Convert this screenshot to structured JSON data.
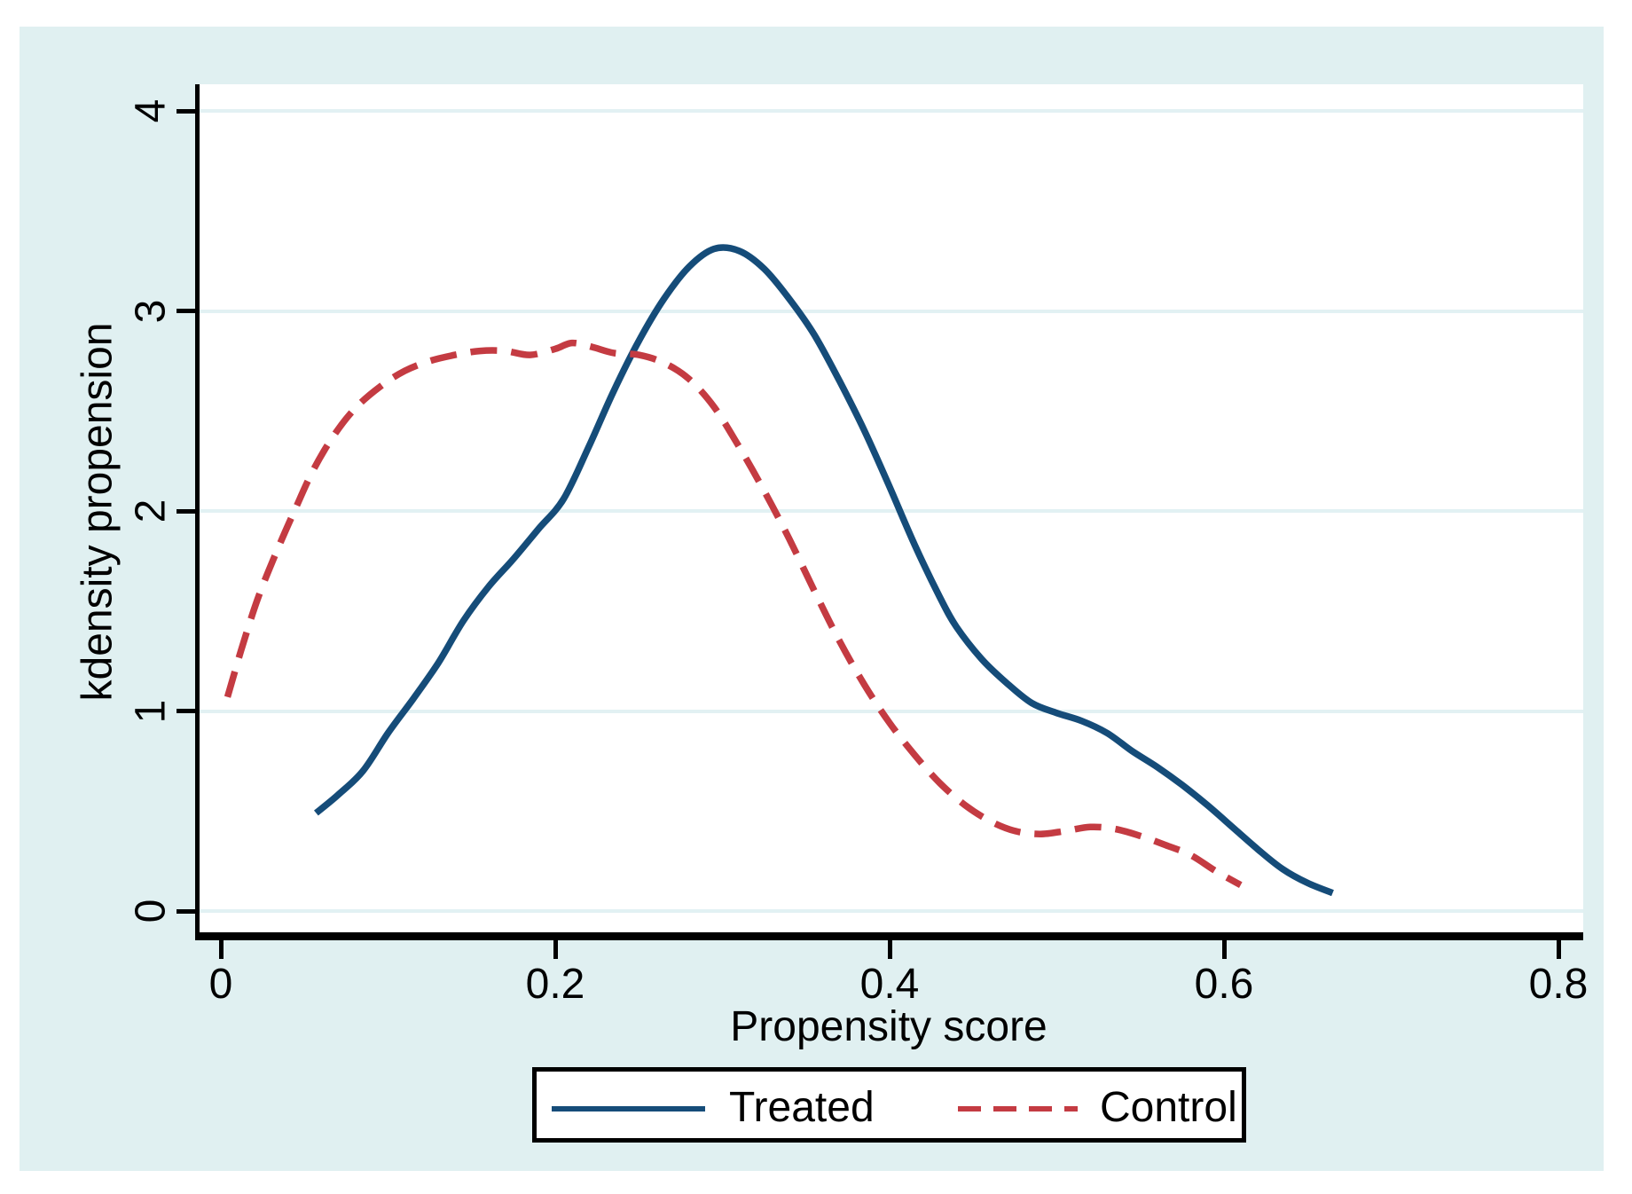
{
  "chart_data": {
    "type": "line",
    "title": "",
    "xlabel": "Propensity score",
    "ylabel": "kdensity propension",
    "xlim": [
      -0.015,
      0.815
    ],
    "ylim": [
      -0.11,
      4.13
    ],
    "grid": "horizontal",
    "legend_position": "bottom-center",
    "x_axis": {
      "tick_values": [
        0,
        0.2,
        0.4,
        0.6,
        0.8
      ],
      "tick_labels": [
        "0",
        "0.2",
        "0.4",
        "0.6",
        "0.8"
      ]
    },
    "y_axis": {
      "tick_values": [
        0,
        1,
        2,
        3,
        4
      ],
      "tick_labels": [
        "0",
        "1",
        "2",
        "3",
        "4"
      ]
    },
    "series": [
      {
        "name": "Treated",
        "style": "solid",
        "color": "#154c79",
        "points": [
          [
            0.057,
            0.49
          ],
          [
            0.07,
            0.58
          ],
          [
            0.085,
            0.7
          ],
          [
            0.1,
            0.89
          ],
          [
            0.115,
            1.06
          ],
          [
            0.13,
            1.24
          ],
          [
            0.145,
            1.45
          ],
          [
            0.16,
            1.62
          ],
          [
            0.175,
            1.76
          ],
          [
            0.19,
            1.91
          ],
          [
            0.205,
            2.06
          ],
          [
            0.22,
            2.32
          ],
          [
            0.235,
            2.6
          ],
          [
            0.25,
            2.85
          ],
          [
            0.265,
            3.06
          ],
          [
            0.28,
            3.22
          ],
          [
            0.295,
            3.31
          ],
          [
            0.31,
            3.3
          ],
          [
            0.325,
            3.21
          ],
          [
            0.34,
            3.06
          ],
          [
            0.355,
            2.88
          ],
          [
            0.37,
            2.65
          ],
          [
            0.385,
            2.4
          ],
          [
            0.4,
            2.12
          ],
          [
            0.415,
            1.83
          ],
          [
            0.43,
            1.57
          ],
          [
            0.44,
            1.42
          ],
          [
            0.455,
            1.26
          ],
          [
            0.47,
            1.14
          ],
          [
            0.485,
            1.04
          ],
          [
            0.5,
            0.99
          ],
          [
            0.515,
            0.95
          ],
          [
            0.53,
            0.89
          ],
          [
            0.545,
            0.8
          ],
          [
            0.56,
            0.72
          ],
          [
            0.575,
            0.63
          ],
          [
            0.59,
            0.53
          ],
          [
            0.605,
            0.42
          ],
          [
            0.62,
            0.31
          ],
          [
            0.635,
            0.21
          ],
          [
            0.65,
            0.14
          ],
          [
            0.665,
            0.09
          ]
        ]
      },
      {
        "name": "Control",
        "style": "dashed",
        "color": "#c43b42",
        "points": [
          [
            0.004,
            1.07
          ],
          [
            0.012,
            1.3
          ],
          [
            0.022,
            1.56
          ],
          [
            0.033,
            1.79
          ],
          [
            0.044,
            2.0
          ],
          [
            0.055,
            2.2
          ],
          [
            0.067,
            2.37
          ],
          [
            0.08,
            2.51
          ],
          [
            0.095,
            2.62
          ],
          [
            0.11,
            2.7
          ],
          [
            0.125,
            2.75
          ],
          [
            0.14,
            2.78
          ],
          [
            0.155,
            2.8
          ],
          [
            0.17,
            2.8
          ],
          [
            0.185,
            2.78
          ],
          [
            0.2,
            2.81
          ],
          [
            0.21,
            2.84
          ],
          [
            0.222,
            2.82
          ],
          [
            0.235,
            2.79
          ],
          [
            0.25,
            2.78
          ],
          [
            0.265,
            2.74
          ],
          [
            0.28,
            2.66
          ],
          [
            0.295,
            2.52
          ],
          [
            0.31,
            2.32
          ],
          [
            0.325,
            2.1
          ],
          [
            0.34,
            1.86
          ],
          [
            0.355,
            1.6
          ],
          [
            0.37,
            1.35
          ],
          [
            0.385,
            1.13
          ],
          [
            0.4,
            0.94
          ],
          [
            0.415,
            0.78
          ],
          [
            0.43,
            0.64
          ],
          [
            0.445,
            0.53
          ],
          [
            0.46,
            0.45
          ],
          [
            0.475,
            0.4
          ],
          [
            0.49,
            0.385
          ],
          [
            0.505,
            0.4
          ],
          [
            0.52,
            0.42
          ],
          [
            0.535,
            0.41
          ],
          [
            0.55,
            0.375
          ],
          [
            0.565,
            0.33
          ],
          [
            0.58,
            0.28
          ],
          [
            0.595,
            0.2
          ],
          [
            0.61,
            0.13
          ]
        ]
      }
    ]
  },
  "colors": {
    "page_bg": "#ffffff",
    "card_bg": "#e0f0f1",
    "plot_bg": "#ffffff",
    "gridline": "#e2f1f3",
    "axis": "#000000",
    "treated": "#154c79",
    "control": "#c43b42"
  }
}
